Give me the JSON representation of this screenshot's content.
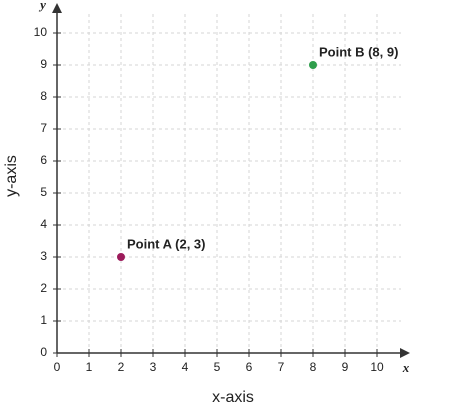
{
  "chart_data": {
    "type": "scatter",
    "x_label": "x-axis",
    "y_label": "y-axis",
    "x_axis_end": "x",
    "y_axis_end": "y",
    "xlim": [
      0,
      11
    ],
    "ylim": [
      0,
      11
    ],
    "xticks": [
      0,
      1,
      2,
      3,
      4,
      5,
      6,
      7,
      8,
      9,
      10
    ],
    "yticks": [
      0,
      1,
      2,
      3,
      4,
      5,
      6,
      7,
      8,
      9,
      10
    ],
    "grid": true,
    "points": [
      {
        "label": "Point A (2, 3)",
        "x": 2,
        "y": 3,
        "color": "#9c1b5b"
      },
      {
        "label": "Point B (8, 9)",
        "x": 8,
        "y": 9,
        "color": "#2f9e4c"
      }
    ]
  }
}
